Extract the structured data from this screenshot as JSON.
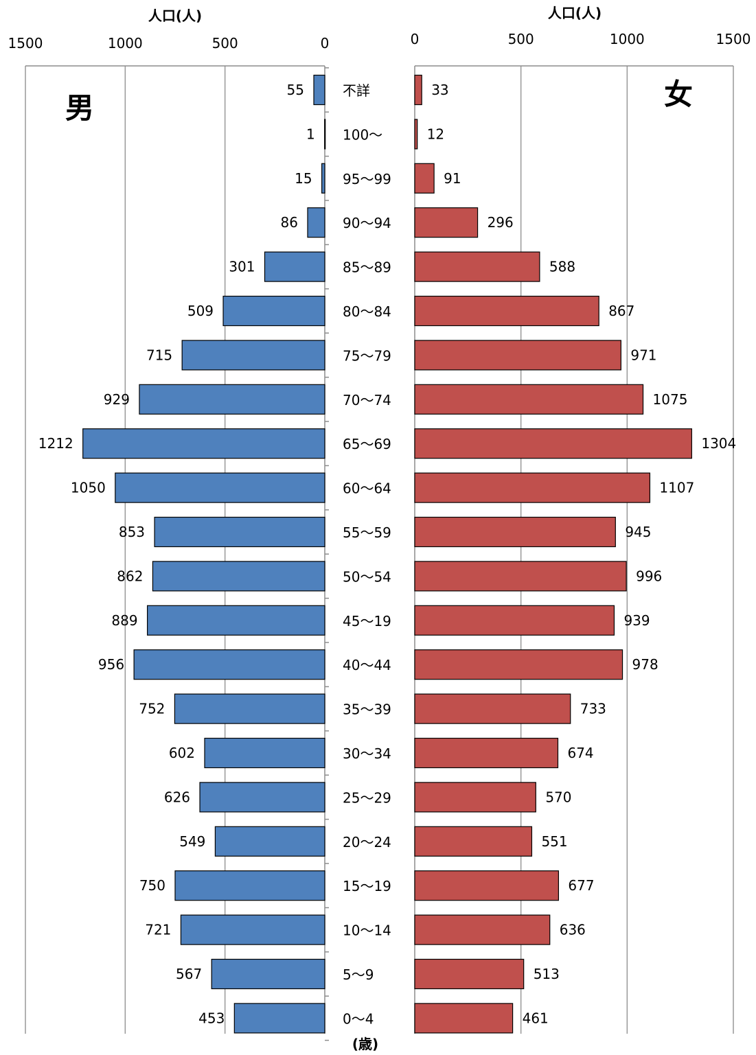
{
  "chart_data": [
    {
      "type": "bar",
      "orientation": "horizontal",
      "side": "left",
      "panel_label": "男",
      "xlabel": "人口(人)",
      "xlim": [
        1500,
        0
      ],
      "x_ticks": [
        "1500",
        "1000",
        "500",
        "0"
      ],
      "color": "#4f81bd",
      "categories": [
        "不詳",
        "100〜",
        "95〜99",
        "90〜94",
        "85〜89",
        "80〜84",
        "75〜79",
        "70〜74",
        "65〜69",
        "60〜64",
        "55〜59",
        "50〜54",
        "45〜19",
        "40〜44",
        "35〜39",
        "30〜34",
        "25〜29",
        "20〜24",
        "15〜19",
        "10〜14",
        "5〜9",
        "0〜4"
      ],
      "values": [
        55,
        1,
        15,
        86,
        301,
        509,
        715,
        929,
        1212,
        1050,
        853,
        862,
        889,
        956,
        752,
        602,
        626,
        549,
        750,
        721,
        567,
        453
      ],
      "grid": true
    },
    {
      "type": "bar",
      "orientation": "horizontal",
      "side": "right",
      "panel_label": "女",
      "xlabel": "人口(人)",
      "xlim": [
        0,
        1500
      ],
      "x_ticks": [
        "0",
        "500",
        "1000",
        "1500"
      ],
      "color": "#c0504d",
      "categories": [
        "不詳",
        "100〜",
        "95〜99",
        "90〜94",
        "85〜89",
        "80〜84",
        "75〜79",
        "70〜74",
        "65〜69",
        "60〜64",
        "55〜59",
        "50〜54",
        "45〜19",
        "40〜44",
        "35〜39",
        "30〜34",
        "25〜29",
        "20〜24",
        "15〜19",
        "10〜14",
        "5〜9",
        "0〜4"
      ],
      "values": [
        33,
        12,
        91,
        296,
        588,
        867,
        971,
        1075,
        1304,
        1107,
        945,
        996,
        939,
        978,
        733,
        674,
        570,
        551,
        677,
        636,
        513,
        461
      ],
      "grid": true
    }
  ],
  "age_axis_label": "(歳)"
}
